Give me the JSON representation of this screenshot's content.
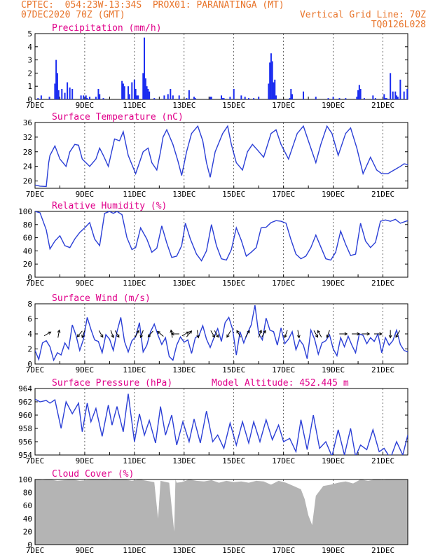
{
  "header": {
    "line1_left": "CPTEC:  054:23W-13:34S  PROX01: PARANATINGA (MT)",
    "line2_left": "07DEC2020 70Z (GMT)",
    "line2_right": "Vertical Grid Line: 70Z",
    "line3_right": "TQ0126L028"
  },
  "colors": {
    "header_text": "#e8742a",
    "title_text": "#e0008a",
    "series_line": "#2b3fd6",
    "bars": "#1a2cf0",
    "cloud_fill": "#b4b4b4",
    "wind_arrows": "#000000"
  },
  "chart_data": [
    {
      "type": "bar",
      "title": "Precipitation (mm/h)",
      "ylim": [
        0,
        5
      ],
      "yticks": [
        0,
        1,
        2,
        3,
        4,
        5
      ],
      "x_range_days": [
        0,
        15
      ],
      "x_tick_labels": [
        "7DEC",
        "9DEC",
        "11DEC",
        "13DEC",
        "15DEC",
        "17DEC",
        "19DEC",
        "21DEC"
      ],
      "x": [
        0.12,
        0.25,
        0.58,
        0.8,
        0.85,
        0.9,
        0.95,
        1.08,
        1.2,
        1.3,
        1.4,
        1.5,
        1.85,
        1.95,
        2.05,
        2.1,
        2.2,
        2.45,
        2.55,
        2.6,
        2.75,
        3.5,
        3.55,
        3.6,
        3.75,
        3.8,
        3.9,
        4.0,
        4.05,
        4.1,
        4.15,
        4.35,
        4.4,
        4.45,
        4.5,
        4.55,
        4.6,
        4.8,
        5.2,
        5.35,
        5.45,
        5.55,
        5.8,
        6.1,
        6.2,
        6.4,
        6.45,
        7.05,
        7.1,
        7.5,
        7.55,
        7.6,
        7.85,
        8.0,
        8.3,
        8.45,
        8.6,
        8.8,
        9.0,
        9.4,
        9.45,
        9.5,
        9.55,
        9.6,
        9.65,
        9.7,
        10.25,
        10.3,
        10.35,
        10.8,
        11.3,
        11.8,
        12.0,
        12.25,
        12.5,
        12.95,
        13.0,
        13.05,
        13.1,
        13.25,
        13.6,
        13.7,
        14.05,
        14.1,
        14.15,
        14.3,
        14.4,
        14.5,
        14.55,
        14.6,
        14.7,
        14.85,
        14.98
      ],
      "values": [
        0.1,
        0.3,
        0.2,
        1.2,
        3.0,
        2.0,
        0.7,
        0.8,
        0.5,
        1.3,
        0.9,
        0.8,
        0.3,
        0.3,
        0.3,
        0.1,
        0.2,
        0.2,
        0.8,
        0.4,
        0.1,
        1.4,
        1.2,
        1.0,
        1.0,
        0.4,
        1.3,
        1.5,
        0.8,
        0.3,
        0.3,
        2.0,
        4.7,
        1.6,
        1.0,
        0.8,
        0.6,
        0.1,
        0.3,
        0.4,
        0.8,
        0.3,
        0.3,
        0.1,
        0.7,
        0.2,
        0.1,
        0.2,
        0.2,
        0.3,
        0.1,
        0.1,
        0.2,
        0.8,
        0.3,
        0.2,
        0.1,
        0.1,
        0.2,
        1.2,
        2.8,
        3.5,
        2.9,
        1.3,
        1.5,
        0.3,
        0.1,
        0.8,
        0.4,
        0.6,
        0.2,
        0.1,
        0.2,
        0.1,
        0.1,
        0.2,
        0.7,
        1.1,
        0.8,
        0.1,
        0.3,
        0.1,
        0.4,
        0.1,
        0.1,
        2.0,
        0.6,
        0.6,
        0.3,
        0.2,
        1.5,
        0.6,
        0.8
      ]
    },
    {
      "type": "line",
      "title": "Surface Temperature (nC)",
      "ylim": [
        18,
        36
      ],
      "yticks": [
        20,
        24,
        28,
        32,
        36
      ],
      "x_range_days": [
        0,
        15
      ],
      "x_tick_labels": [
        "7DEC",
        "9DEC",
        "11DEC",
        "13DEC",
        "15DEC",
        "17DEC",
        "19DEC",
        "21DEC"
      ],
      "x": [
        0,
        0.2,
        0.45,
        0.55,
        0.6,
        0.8,
        1.0,
        1.25,
        1.4,
        1.6,
        1.75,
        1.9,
        2.2,
        2.45,
        2.6,
        2.75,
        2.95,
        3.2,
        3.4,
        3.55,
        3.75,
        4.05,
        4.2,
        4.35,
        4.55,
        4.7,
        4.9,
        5.05,
        5.15,
        5.3,
        5.55,
        5.75,
        5.9,
        6.1,
        6.3,
        6.55,
        6.75,
        6.9,
        7.05,
        7.25,
        7.55,
        7.75,
        7.9,
        8.1,
        8.35,
        8.55,
        8.75,
        8.95,
        9.2,
        9.5,
        9.7,
        9.9,
        10.2,
        10.55,
        10.8,
        11.0,
        11.3,
        11.5,
        11.75,
        11.95,
        12.2,
        12.5,
        12.7,
        12.95,
        13.2,
        13.5,
        13.75,
        13.95,
        14.2,
        14.45,
        14.7,
        14.85,
        15.0
      ],
      "values": [
        18.9,
        18.6,
        18.5,
        25.0,
        27.0,
        29.6,
        26.0,
        24.0,
        28.0,
        30.0,
        29.8,
        26.0,
        24.0,
        26.0,
        29.0,
        27.0,
        24.0,
        31.5,
        31.0,
        33.5,
        27.0,
        22.0,
        25.0,
        28.0,
        29.0,
        25.0,
        23.0,
        28.0,
        32.0,
        34.0,
        30.0,
        25.5,
        21.5,
        28.0,
        33.0,
        35.0,
        31.0,
        25.0,
        21.0,
        28.0,
        33.0,
        35.0,
        30.0,
        25.0,
        23.0,
        28.0,
        30.0,
        28.5,
        26.5,
        33.0,
        34.0,
        30.0,
        26.0,
        33.0,
        35.0,
        31.0,
        25.0,
        30.0,
        35.0,
        33.0,
        27.0,
        33.0,
        34.5,
        29.0,
        22.0,
        26.5,
        23.0,
        22.0,
        22.0,
        23.0,
        24.0,
        24.7,
        24.5
      ]
    },
    {
      "type": "line",
      "title": "Relative Humidity (%)",
      "ylim": [
        0,
        100
      ],
      "yticks": [
        0,
        20,
        40,
        60,
        80,
        100
      ],
      "x_range_days": [
        0,
        15
      ],
      "x_tick_labels": [
        "7DEC",
        "9DEC",
        "11DEC",
        "13DEC",
        "15DEC",
        "17DEC",
        "19DEC",
        "21DEC"
      ],
      "x": [
        0,
        0.2,
        0.45,
        0.6,
        0.8,
        1.0,
        1.2,
        1.4,
        1.6,
        1.8,
        2.0,
        2.2,
        2.4,
        2.6,
        2.8,
        3.0,
        3.15,
        3.3,
        3.5,
        3.7,
        3.9,
        4.05,
        4.25,
        4.5,
        4.7,
        4.9,
        5.1,
        5.3,
        5.5,
        5.7,
        5.9,
        6.05,
        6.25,
        6.5,
        6.7,
        6.9,
        7.1,
        7.3,
        7.5,
        7.7,
        7.9,
        8.1,
        8.3,
        8.5,
        8.7,
        8.9,
        9.1,
        9.3,
        9.5,
        9.7,
        9.9,
        10.1,
        10.3,
        10.5,
        10.7,
        10.9,
        11.1,
        11.3,
        11.5,
        11.7,
        11.9,
        12.1,
        12.3,
        12.5,
        12.7,
        12.9,
        13.1,
        13.3,
        13.5,
        13.7,
        13.9,
        14.1,
        14.3,
        14.5,
        14.7,
        15.0
      ],
      "values": [
        100,
        98,
        72,
        43,
        55,
        63,
        48,
        45,
        58,
        68,
        75,
        83,
        58,
        48,
        97,
        100,
        97,
        100,
        95,
        60,
        42,
        45,
        75,
        58,
        38,
        44,
        78,
        52,
        30,
        32,
        48,
        82,
        58,
        35,
        25,
        40,
        80,
        48,
        28,
        26,
        42,
        75,
        56,
        32,
        38,
        45,
        75,
        76,
        83,
        86,
        85,
        82,
        57,
        35,
        28,
        32,
        45,
        64,
        46,
        28,
        26,
        38,
        70,
        50,
        33,
        35,
        82,
        55,
        45,
        53,
        85,
        87,
        85,
        88,
        82,
        86
      ]
    },
    {
      "type": "line",
      "title": "Surface Wind (m/s)",
      "ylim": [
        0,
        8
      ],
      "yticks": [
        0,
        2,
        4,
        6,
        8
      ],
      "x_range_days": [
        0,
        15
      ],
      "x_tick_labels": [
        "7DEC",
        "9DEC",
        "11DEC",
        "13DEC",
        "15DEC",
        "17DEC",
        "19DEC",
        "21DEC"
      ],
      "x": [
        0,
        0.15,
        0.3,
        0.45,
        0.6,
        0.75,
        0.9,
        1.05,
        1.2,
        1.35,
        1.5,
        1.65,
        1.8,
        1.95,
        2.1,
        2.25,
        2.4,
        2.55,
        2.7,
        2.85,
        3.0,
        3.15,
        3.3,
        3.45,
        3.6,
        3.75,
        3.9,
        4.05,
        4.2,
        4.35,
        4.5,
        4.65,
        4.8,
        4.95,
        5.1,
        5.25,
        5.4,
        5.55,
        5.7,
        5.85,
        6.0,
        6.15,
        6.3,
        6.45,
        6.6,
        6.75,
        6.9,
        7.05,
        7.2,
        7.35,
        7.5,
        7.65,
        7.8,
        7.95,
        8.1,
        8.25,
        8.4,
        8.55,
        8.7,
        8.85,
        9.0,
        9.15,
        9.3,
        9.45,
        9.6,
        9.75,
        9.9,
        10.05,
        10.2,
        10.35,
        10.5,
        10.65,
        10.8,
        10.95,
        11.1,
        11.25,
        11.4,
        11.55,
        11.7,
        11.85,
        12.0,
        12.15,
        12.3,
        12.45,
        12.6,
        12.75,
        12.9,
        13.05,
        13.2,
        13.35,
        13.5,
        13.65,
        13.8,
        13.95,
        14.1,
        14.25,
        14.4,
        14.55,
        14.7,
        14.85,
        15.0
      ],
      "values": [
        1.8,
        0.6,
        2.8,
        3.1,
        2.3,
        0.5,
        1.5,
        1.2,
        2.8,
        2.0,
        5.2,
        3.8,
        1.8,
        3.3,
        6.2,
        4.6,
        3.2,
        3.0,
        1.5,
        3.9,
        3.3,
        1.8,
        4.3,
        6.2,
        3.0,
        1.6,
        3.1,
        3.6,
        5.5,
        1.6,
        2.5,
        4.3,
        5.3,
        3.8,
        2.6,
        3.5,
        1.0,
        0.5,
        2.5,
        3.6,
        2.9,
        3.2,
        1.4,
        3.5,
        3.8,
        5.1,
        3.3,
        2.2,
        3.5,
        4.7,
        3.0,
        5.5,
        6.2,
        4.6,
        1.2,
        4.3,
        2.8,
        4.1,
        5.2,
        7.8,
        4.0,
        3.2,
        6.1,
        4.5,
        4.3,
        2.5,
        4.8,
        2.7,
        3.3,
        4.3,
        1.9,
        3.2,
        2.5,
        0.7,
        4.5,
        3.3,
        1.3,
        2.8,
        3.1,
        3.9,
        2.0,
        1.1,
        3.5,
        2.3,
        3.7,
        2.5,
        1.5,
        4.0,
        3.8,
        2.7,
        3.5,
        3.0,
        4.0,
        1.5,
        3.5,
        2.5,
        3.1,
        4.5,
        2.6,
        1.8,
        1.6
      ]
    },
    {
      "type": "line",
      "title": "Surface Pressure (hPa)",
      "subtitle": "Model Altitude: 452.445  m",
      "ylim": [
        954,
        964
      ],
      "yticks": [
        954,
        956,
        958,
        960,
        962,
        964
      ],
      "x_range_days": [
        0,
        15
      ],
      "x_tick_labels": [
        "7DEC",
        "9DEC",
        "11DEC",
        "13DEC",
        "15DEC",
        "17DEC",
        "19DEC",
        "21DEC"
      ],
      "x": [
        0,
        0.2,
        0.45,
        0.6,
        0.8,
        1.05,
        1.25,
        1.5,
        1.75,
        1.9,
        2.1,
        2.25,
        2.45,
        2.7,
        2.95,
        3.1,
        3.3,
        3.55,
        3.75,
        4.0,
        4.2,
        4.4,
        4.6,
        4.85,
        5.05,
        5.25,
        5.5,
        5.7,
        5.95,
        6.2,
        6.4,
        6.65,
        6.9,
        7.15,
        7.35,
        7.6,
        7.85,
        8.1,
        8.35,
        8.6,
        8.8,
        9.05,
        9.3,
        9.55,
        9.8,
        10.0,
        10.25,
        10.5,
        10.7,
        10.95,
        11.2,
        11.45,
        11.7,
        11.95,
        12.2,
        12.45,
        12.7,
        12.9,
        13.1,
        13.35,
        13.6,
        13.85,
        14.05,
        14.3,
        14.55,
        14.8,
        15.0
      ],
      "values": [
        962.4,
        962.0,
        962.2,
        961.8,
        962.3,
        958.0,
        962.0,
        960.2,
        961.8,
        957.5,
        961.8,
        959.0,
        961.0,
        956.8,
        961.5,
        958.5,
        961.3,
        957.5,
        963.2,
        956.0,
        960.2,
        957.0,
        959.2,
        955.8,
        961.3,
        957.0,
        960.0,
        955.5,
        959.0,
        956.0,
        959.4,
        955.8,
        960.6,
        956.0,
        957.0,
        955.0,
        958.8,
        955.5,
        959.0,
        955.8,
        959.0,
        956.0,
        959.3,
        956.3,
        958.5,
        956.0,
        956.5,
        954.5,
        959.3,
        954.8,
        960.0,
        955.0,
        956.0,
        953.8,
        957.8,
        954.0,
        958.0,
        953.8,
        955.5,
        954.8,
        957.8,
        954.5,
        955.0,
        953.5,
        956.0,
        954.0,
        957.0
      ]
    },
    {
      "type": "area",
      "title": "Cloud Cover (%)",
      "ylim": [
        0,
        100
      ],
      "yticks": [
        0,
        20,
        40,
        60,
        80,
        100
      ],
      "x_range_days": [
        0,
        15
      ],
      "x_tick_labels": [
        "7DEC",
        "9DEC",
        "11DEC",
        "13DEC",
        "15DEC",
        "17DEC",
        "19DEC",
        "21DEC"
      ],
      "x": [
        0,
        0.3,
        0.6,
        0.9,
        1.2,
        1.5,
        1.8,
        2.1,
        2.4,
        2.7,
        3.0,
        3.3,
        3.6,
        3.9,
        4.2,
        4.5,
        4.8,
        4.95,
        5.05,
        5.4,
        5.6,
        5.65,
        5.7,
        5.9,
        6.2,
        6.5,
        6.8,
        7.1,
        7.4,
        7.7,
        8.0,
        8.3,
        8.6,
        8.9,
        9.2,
        9.5,
        9.8,
        10.1,
        10.4,
        10.7,
        10.85,
        11.0,
        11.15,
        11.3,
        11.6,
        11.9,
        12.2,
        12.5,
        12.8,
        13.1,
        13.4,
        13.7,
        14.0,
        14.3,
        14.6,
        15.0
      ],
      "values": [
        100,
        99,
        100,
        98,
        99,
        100,
        98,
        99,
        100,
        100,
        99,
        100,
        100,
        98,
        100,
        98,
        96,
        40,
        98,
        95,
        20,
        100,
        95,
        96,
        100,
        98,
        97,
        99,
        95,
        98,
        96,
        97,
        95,
        98,
        97,
        92,
        98,
        95,
        90,
        85,
        70,
        45,
        30,
        75,
        90,
        92,
        95,
        97,
        94,
        100,
        98,
        100,
        99,
        100,
        100,
        100
      ]
    }
  ],
  "wind_arrows": [
    {
      "x": 0.5,
      "dir": 60
    },
    {
      "x": 0.95,
      "dir": 10
    },
    {
      "x": 1.8,
      "dir": 220
    },
    {
      "x": 1.95,
      "dir": 200
    },
    {
      "x": 2.65,
      "dir": 150
    },
    {
      "x": 3.1,
      "dir": 160
    },
    {
      "x": 3.3,
      "dir": 150
    },
    {
      "x": 4.1,
      "dir": 30
    },
    {
      "x": 4.3,
      "dir": 200
    },
    {
      "x": 4.65,
      "dir": 220
    },
    {
      "x": 5.05,
      "dir": 310
    },
    {
      "x": 5.5,
      "dir": 350
    },
    {
      "x": 5.65,
      "dir": 270
    },
    {
      "x": 6.05,
      "dir": 60
    },
    {
      "x": 6.2,
      "dir": 40
    },
    {
      "x": 6.55,
      "dir": 170
    },
    {
      "x": 7.15,
      "dir": 150
    },
    {
      "x": 7.3,
      "dir": 150
    },
    {
      "x": 7.8,
      "dir": 210
    },
    {
      "x": 8.2,
      "dir": 330
    },
    {
      "x": 8.55,
      "dir": 30
    },
    {
      "x": 9.05,
      "dir": 20
    },
    {
      "x": 9.2,
      "dir": 30
    },
    {
      "x": 10.1,
      "dir": 200
    },
    {
      "x": 10.6,
      "dir": 170
    },
    {
      "x": 11.3,
      "dir": 150
    },
    {
      "x": 11.45,
      "dir": 330
    },
    {
      "x": 11.8,
      "dir": 200
    },
    {
      "x": 12.4,
      "dir": 90
    },
    {
      "x": 12.9,
      "dir": 90
    },
    {
      "x": 13.3,
      "dir": 90
    },
    {
      "x": 13.8,
      "dir": 90
    },
    {
      "x": 14.3,
      "dir": 180
    },
    {
      "x": 14.6,
      "dir": 210
    }
  ]
}
